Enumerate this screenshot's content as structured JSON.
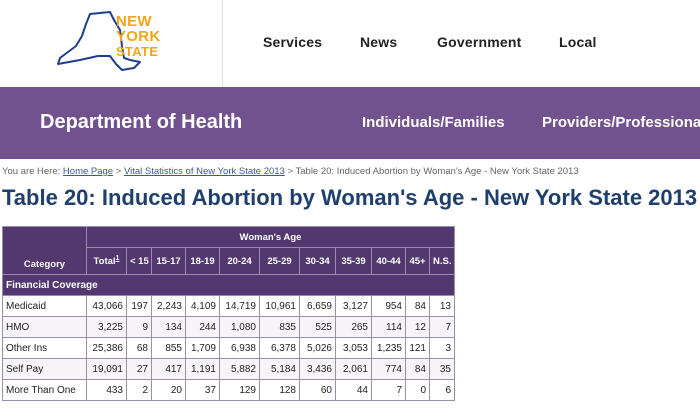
{
  "header": {
    "logo": {
      "line1": "NEW",
      "line2": "YORK",
      "line3": "STATE"
    },
    "nav": [
      "Services",
      "News",
      "Government",
      "Local"
    ]
  },
  "dept": {
    "title": "Department of Health",
    "links": [
      "Individuals/Families",
      "Providers/Professionals"
    ]
  },
  "breadcrumb": {
    "prefix": "You are Here:",
    "home": "Home Page",
    "sep": ">",
    "section": "Vital Statistics of New York State 2013",
    "current": "Table 20: Induced Abortion by Woman's Age - New York State 2013"
  },
  "page_title": "Table 20: Induced Abortion by Woman's Age - New York State 2013",
  "table": {
    "group_header": "Woman's Age",
    "category_header": "Category",
    "total_header": "Total",
    "total_footnote": "1",
    "age_columns": [
      "< 15",
      "15-17",
      "18-19",
      "20-24",
      "25-29",
      "30-34",
      "35-39",
      "40-44",
      "45+",
      "N.S."
    ],
    "section": "Financial Coverage",
    "rows": [
      {
        "category": "Medicaid",
        "values": [
          "43,066",
          "197",
          "2,243",
          "4,109",
          "14,719",
          "10,961",
          "6,659",
          "3,127",
          "954",
          "84",
          "13"
        ]
      },
      {
        "category": "HMO",
        "values": [
          "3,225",
          "9",
          "134",
          "244",
          "1,080",
          "835",
          "525",
          "265",
          "114",
          "12",
          "7"
        ]
      },
      {
        "category": "Other Ins",
        "values": [
          "25,386",
          "68",
          "855",
          "1,709",
          "6,938",
          "6,378",
          "5,026",
          "3,053",
          "1,235",
          "121",
          "3"
        ]
      },
      {
        "category": "Self Pay",
        "values": [
          "19,091",
          "27",
          "417",
          "1,191",
          "5,882",
          "5,184",
          "3,436",
          "2,061",
          "774",
          "84",
          "35"
        ]
      },
      {
        "category": "More Than One",
        "values": [
          "433",
          "2",
          "20",
          "37",
          "129",
          "128",
          "60",
          "44",
          "7",
          "0",
          "6"
        ]
      }
    ]
  },
  "colors": {
    "dept_bar": "#72518f",
    "table_header": "#53386f",
    "title": "#1f3f6e",
    "logo": "#f2a51b"
  }
}
